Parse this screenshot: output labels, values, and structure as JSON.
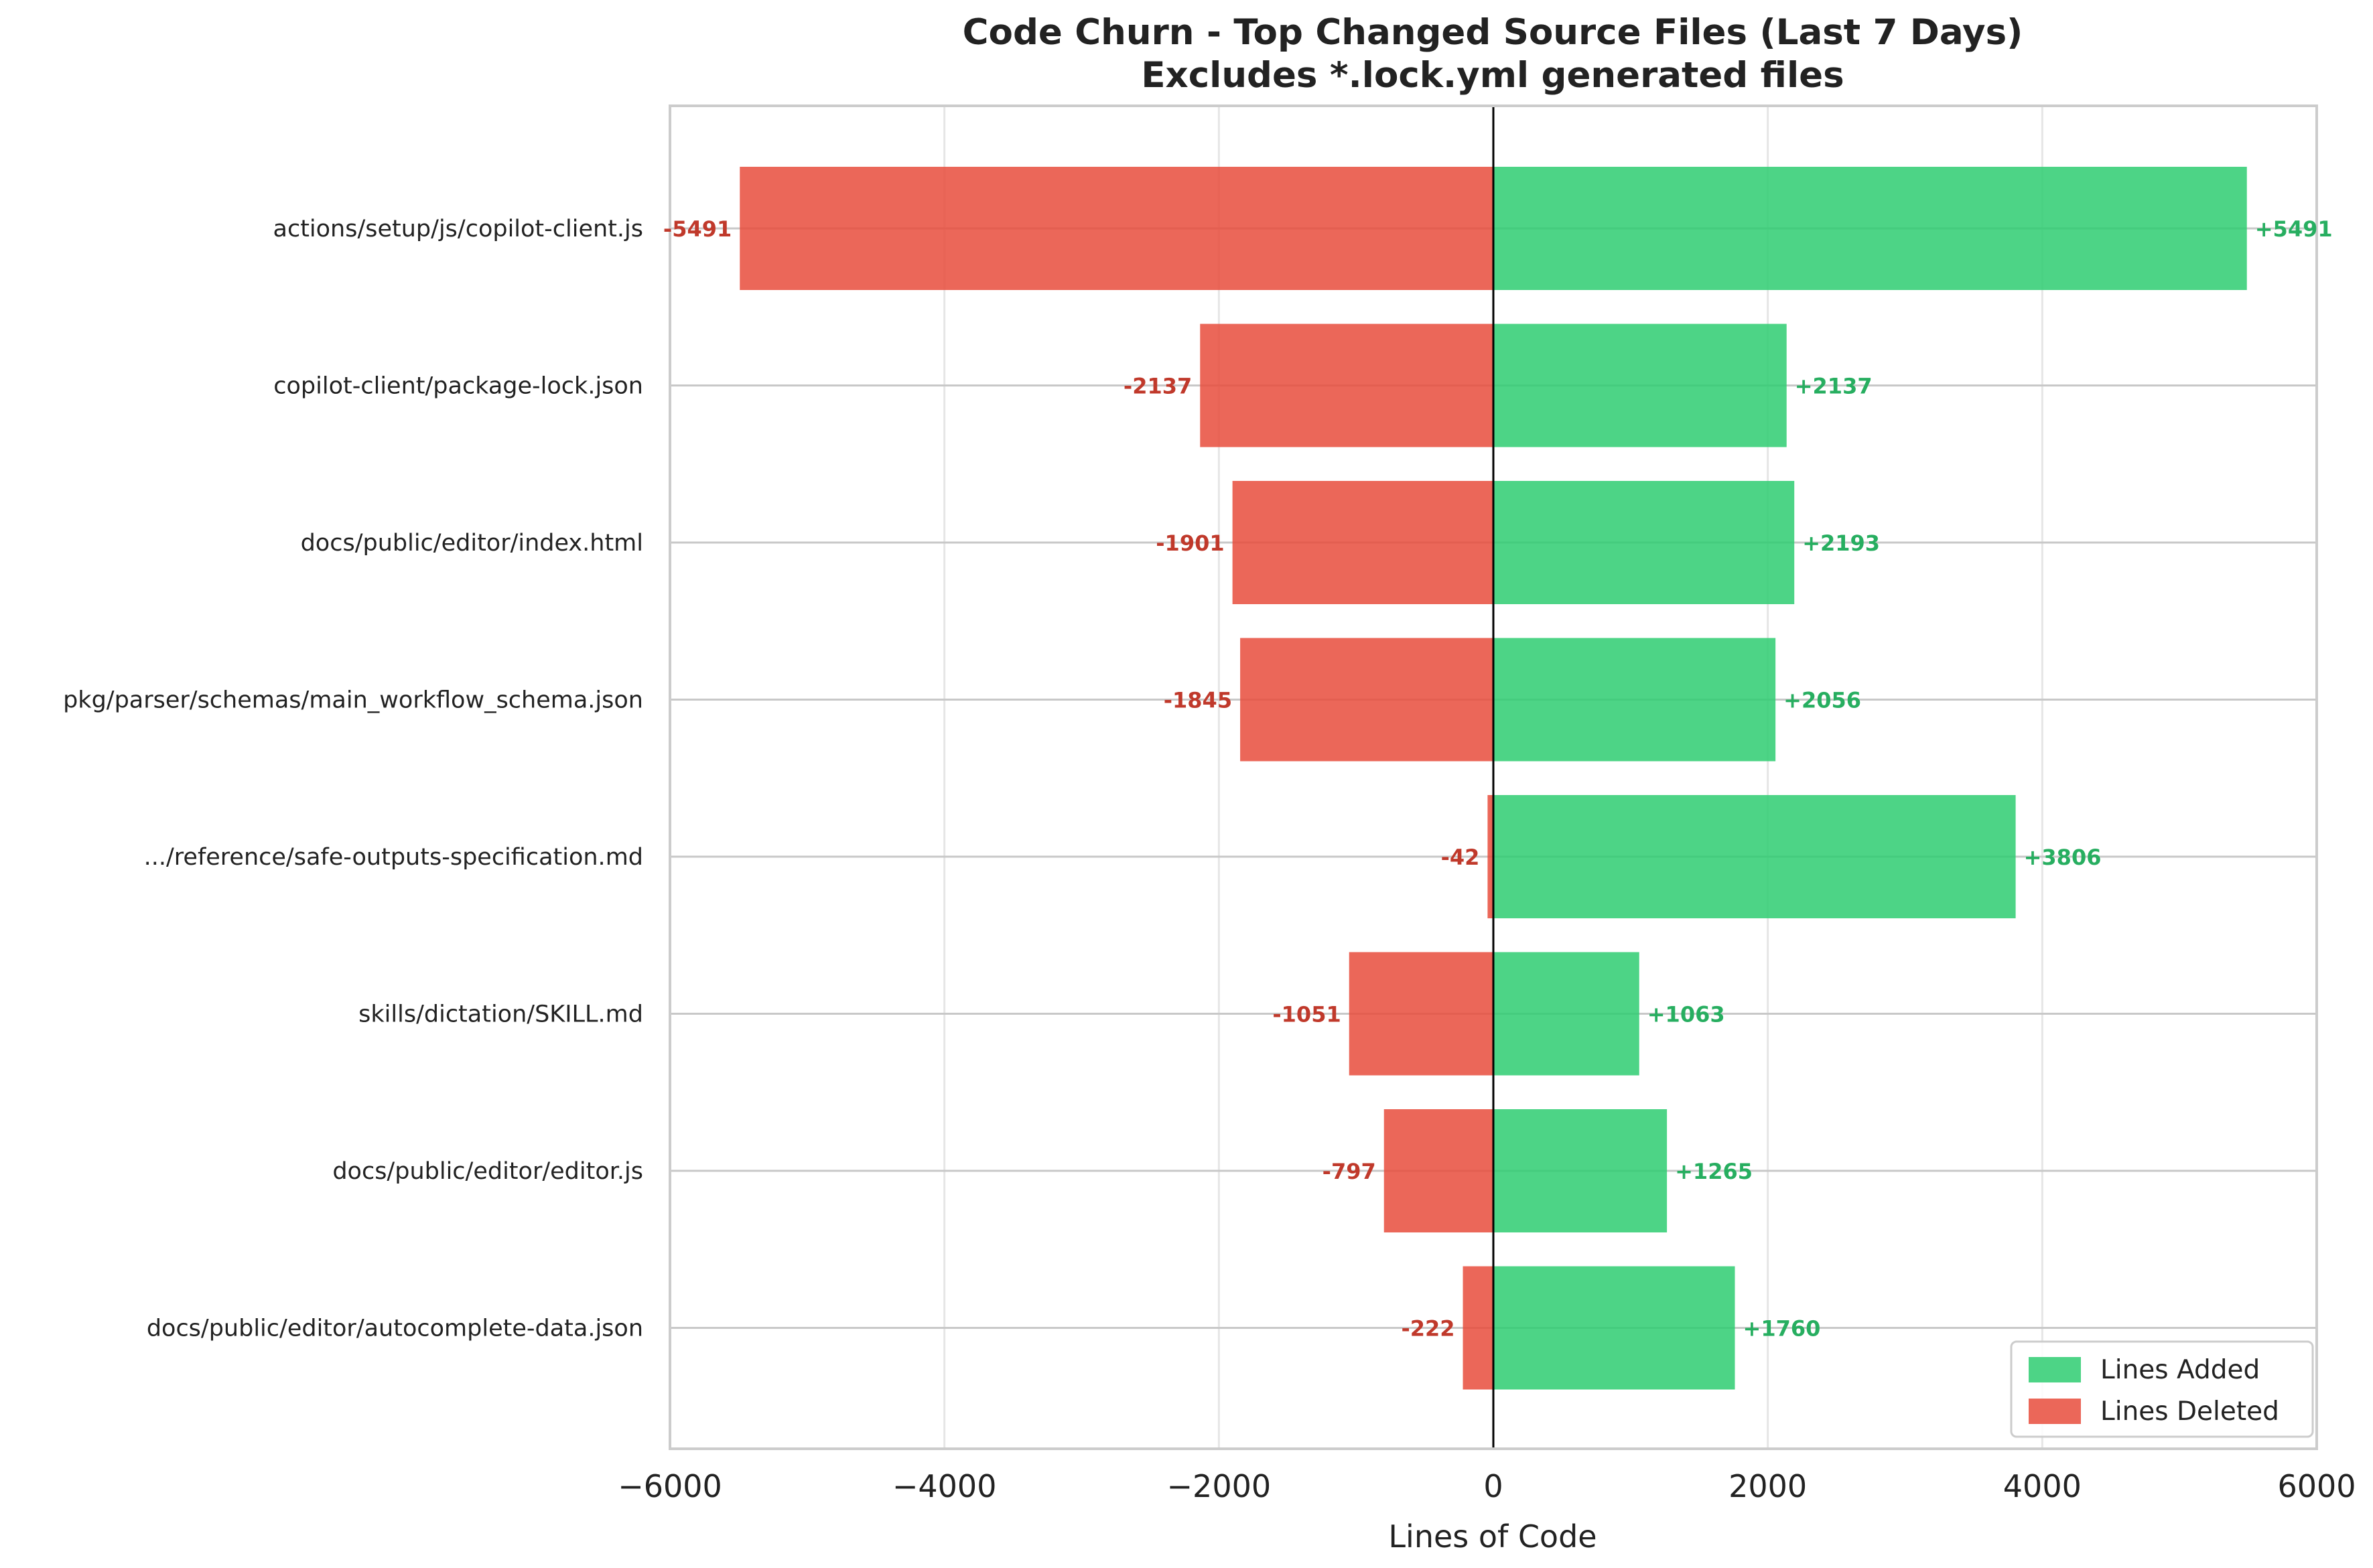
{
  "chart_data": {
    "type": "bar",
    "orientation": "horizontal-diverging",
    "title": "Code Churn - Top Changed Source Files (Last 7 Days)",
    "subtitle": "Excludes *.lock.yml generated files",
    "xlabel": "Lines of Code",
    "ylabel": "",
    "xlim": [
      -6000,
      6000
    ],
    "xticks": [
      -6000,
      -4000,
      -2000,
      0,
      2000,
      4000,
      6000
    ],
    "xtick_labels": [
      "−6000",
      "−4000",
      "−2000",
      "0",
      "2000",
      "4000",
      "6000"
    ],
    "grid": true,
    "legend_position": "bottom-right",
    "categories": [
      "actions/setup/js/copilot-client.js",
      "copilot-client/package-lock.json",
      "docs/public/editor/index.html",
      "pkg/parser/schemas/main_workflow_schema.json",
      ".../reference/safe-outputs-specification.md",
      "skills/dictation/SKILL.md",
      "docs/public/editor/editor.js",
      "docs/public/editor/autocomplete-data.json"
    ],
    "series": [
      {
        "name": "Lines Added",
        "color": "#2ecc71",
        "label_color": "#27ae60",
        "values": [
          5491,
          2137,
          2193,
          2056,
          3806,
          1063,
          1265,
          1760
        ],
        "labels": [
          "+5491",
          "+2137",
          "+2193",
          "+2056",
          "+3806",
          "+1063",
          "+1265",
          "+1760"
        ]
      },
      {
        "name": "Lines Deleted",
        "color": "#e74c3c",
        "label_color": "#c0392b",
        "values": [
          -5491,
          -2137,
          -1901,
          -1845,
          -42,
          -1051,
          -797,
          -222
        ],
        "labels": [
          "-5491",
          "-2137",
          "-1901",
          "-1845",
          "-42",
          "-1051",
          "-797",
          "-222"
        ]
      }
    ]
  }
}
